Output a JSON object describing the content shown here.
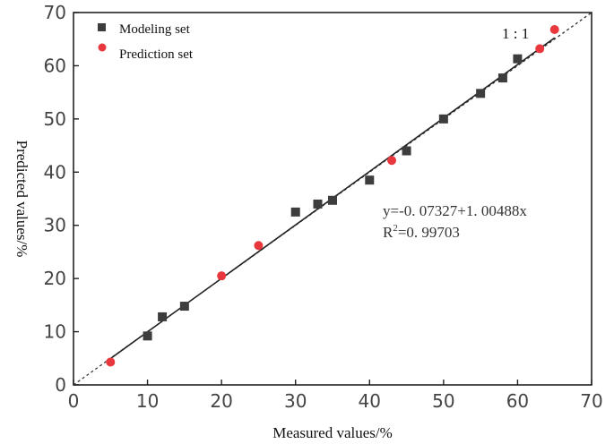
{
  "chart_data": {
    "type": "scatter",
    "xlabel": "Measured values/%",
    "ylabel": "Predicted values/%",
    "xlim": [
      0,
      70
    ],
    "ylim": [
      0,
      70
    ],
    "xticks": [
      "0",
      "10",
      "20",
      "30",
      "40",
      "50",
      "60",
      "70"
    ],
    "yticks": [
      "0",
      "10",
      "20",
      "30",
      "40",
      "50",
      "60",
      "70"
    ],
    "legend_position": "top-left",
    "series": [
      {
        "name": "Modeling set",
        "marker": "square",
        "color": "#3d3d3d",
        "x": [
          10,
          12,
          15,
          30,
          33,
          35,
          40,
          45,
          50,
          55,
          58,
          60
        ],
        "y": [
          9.2,
          12.8,
          14.8,
          32.5,
          34,
          34.7,
          38.5,
          44,
          50,
          54.8,
          57.7,
          61.3
        ]
      },
      {
        "name": "Prediction set",
        "marker": "circle",
        "color": "#e8383d",
        "x": [
          5,
          20,
          25,
          43,
          63,
          65
        ],
        "y": [
          4.3,
          20.5,
          26.2,
          42.2,
          63.2,
          66.8
        ]
      }
    ],
    "fit_line": {
      "intercept": -0.07327,
      "slope": 1.00488,
      "range": [
        5,
        65
      ],
      "color": "#222222"
    },
    "reference_line": {
      "label": "1:1",
      "range": [
        0,
        70
      ]
    },
    "annotations": {
      "equation": "y=-0. 07327+1. 00488x",
      "r2_prefix": "R",
      "r2_sup": "2",
      "r2_value": "=0. 99703",
      "ratio_label": "1 : 1"
    }
  }
}
